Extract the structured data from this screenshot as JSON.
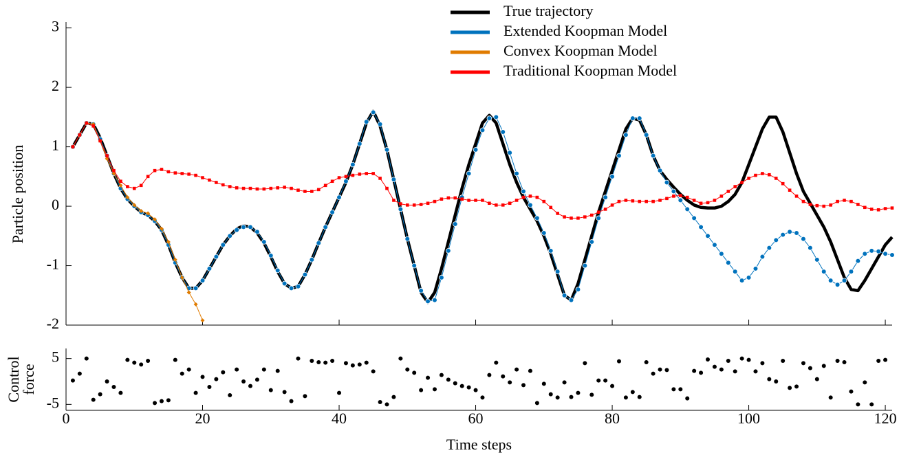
{
  "chart_data": [
    {
      "type": "line",
      "ylabel": "Particle position",
      "x": [
        1,
        2,
        3,
        4,
        5,
        6,
        7,
        8,
        9,
        10,
        11,
        12,
        13,
        14,
        15,
        16,
        17,
        18,
        19,
        20,
        21,
        22,
        23,
        24,
        25,
        26,
        27,
        28,
        29,
        30,
        31,
        32,
        33,
        34,
        35,
        36,
        37,
        38,
        39,
        40,
        41,
        42,
        43,
        44,
        45,
        46,
        47,
        48,
        49,
        50,
        51,
        52,
        53,
        54,
        55,
        56,
        57,
        58,
        59,
        60,
        61,
        62,
        63,
        64,
        65,
        66,
        67,
        68,
        69,
        70,
        71,
        72,
        73,
        74,
        75,
        76,
        77,
        78,
        79,
        80,
        81,
        82,
        83,
        84,
        85,
        86,
        87,
        88,
        89,
        90,
        91,
        92,
        93,
        94,
        95,
        96,
        97,
        98,
        99,
        100,
        101,
        102,
        103,
        104,
        105,
        106,
        107,
        108,
        109,
        110,
        111,
        112,
        113,
        114,
        115,
        116,
        117,
        118,
        119,
        120,
        121
      ],
      "xlim": [
        0,
        121
      ],
      "xticks": [
        0,
        20,
        40,
        60,
        80,
        100,
        120
      ],
      "ylim": [
        -2,
        3.1
      ],
      "yticks": [
        -2,
        -1,
        0,
        1,
        2,
        3
      ],
      "legend": "upper right",
      "series": [
        {
          "name": "True trajectory",
          "color": "#000000",
          "marker": "none",
          "values": [
            1.0,
            1.2,
            1.4,
            1.38,
            1.15,
            0.85,
            0.55,
            0.3,
            0.12,
            0.0,
            -0.1,
            -0.15,
            -0.25,
            -0.4,
            -0.65,
            -0.95,
            -1.2,
            -1.38,
            -1.38,
            -1.25,
            -1.05,
            -0.85,
            -0.65,
            -0.5,
            -0.38,
            -0.33,
            -0.35,
            -0.45,
            -0.62,
            -0.85,
            -1.1,
            -1.3,
            -1.38,
            -1.35,
            -1.15,
            -0.9,
            -0.62,
            -0.35,
            -0.1,
            0.15,
            0.4,
            0.7,
            1.05,
            1.4,
            1.6,
            1.35,
            0.95,
            0.45,
            -0.05,
            -0.55,
            -1.0,
            -1.45,
            -1.62,
            -1.45,
            -1.05,
            -0.6,
            -0.15,
            0.3,
            0.7,
            1.05,
            1.4,
            1.53,
            1.4,
            1.05,
            0.7,
            0.4,
            0.15,
            -0.05,
            -0.25,
            -0.5,
            -0.8,
            -1.15,
            -1.5,
            -1.58,
            -1.3,
            -0.9,
            -0.5,
            -0.1,
            0.25,
            0.6,
            0.95,
            1.3,
            1.48,
            1.45,
            1.2,
            0.85,
            0.6,
            0.45,
            0.32,
            0.2,
            0.1,
            0.02,
            -0.02,
            -0.03,
            -0.03,
            0.0,
            0.08,
            0.2,
            0.4,
            0.7,
            1.0,
            1.3,
            1.5,
            1.5,
            1.25,
            0.9,
            0.55,
            0.25,
            0.05,
            -0.15,
            -0.35,
            -0.6,
            -0.9,
            -1.2,
            -1.4,
            -1.42,
            -1.25,
            -1.05,
            -0.85,
            -0.65,
            -0.52
          ]
        },
        {
          "name": "Extended Koopman Model",
          "color": "#0072bd",
          "marker": "circle",
          "values": [
            1.0,
            1.2,
            1.4,
            1.38,
            1.13,
            0.85,
            0.55,
            0.3,
            0.12,
            0.0,
            -0.1,
            -0.15,
            -0.25,
            -0.4,
            -0.65,
            -0.95,
            -1.2,
            -1.38,
            -1.38,
            -1.25,
            -1.05,
            -0.85,
            -0.65,
            -0.5,
            -0.4,
            -0.35,
            -0.35,
            -0.43,
            -0.6,
            -0.83,
            -1.08,
            -1.3,
            -1.38,
            -1.35,
            -1.15,
            -0.9,
            -0.62,
            -0.35,
            -0.1,
            0.15,
            0.42,
            0.7,
            1.05,
            1.42,
            1.58,
            1.38,
            0.95,
            0.45,
            -0.05,
            -0.55,
            -1.0,
            -1.42,
            -1.6,
            -1.58,
            -1.2,
            -0.75,
            -0.3,
            0.15,
            0.55,
            0.95,
            1.28,
            1.48,
            1.5,
            1.25,
            0.9,
            0.55,
            0.25,
            0.02,
            -0.2,
            -0.45,
            -0.75,
            -1.1,
            -1.5,
            -1.58,
            -1.4,
            -1.0,
            -0.6,
            -0.2,
            0.15,
            0.5,
            0.85,
            1.2,
            1.48,
            1.48,
            1.2,
            0.85,
            0.6,
            0.4,
            0.25,
            0.1,
            -0.05,
            -0.2,
            -0.35,
            -0.5,
            -0.65,
            -0.8,
            -0.95,
            -1.1,
            -1.25,
            -1.2,
            -1.05,
            -0.85,
            -0.7,
            -0.57,
            -0.48,
            -0.43,
            -0.45,
            -0.55,
            -0.7,
            -0.9,
            -1.1,
            -1.25,
            -1.32,
            -1.25,
            -1.1,
            -0.92,
            -0.8,
            -0.75,
            -0.76,
            -0.8,
            -0.82
          ]
        },
        {
          "name": "Convex Koopman Model",
          "color": "#e07b00",
          "marker": "diamond",
          "values": [
            1.0,
            1.2,
            1.4,
            1.38,
            1.1,
            0.8,
            0.55,
            0.35,
            0.15,
            0.02,
            -0.08,
            -0.12,
            -0.22,
            -0.38,
            -0.6,
            -0.9,
            -1.2,
            -1.45,
            -1.65,
            -1.92,
            null,
            null,
            null,
            null,
            null,
            null,
            null,
            null,
            null,
            null,
            null,
            null,
            null,
            null,
            null,
            null,
            null,
            null,
            null,
            null,
            null,
            null,
            null,
            null,
            null,
            null,
            null,
            null,
            null,
            null,
            null,
            null,
            null,
            null,
            null,
            null,
            null,
            null,
            null,
            null,
            null,
            null,
            null,
            null,
            null,
            null,
            null,
            null,
            null,
            null,
            null,
            null,
            null,
            null,
            null,
            null,
            null,
            null,
            null,
            null,
            null,
            null,
            null,
            null,
            null,
            null,
            null,
            null,
            null,
            null,
            null,
            null,
            null,
            null,
            null,
            null,
            null,
            null,
            null,
            null,
            null,
            null,
            null,
            null,
            null,
            null,
            null,
            null,
            null,
            null,
            null,
            null,
            null,
            null,
            null,
            null,
            null,
            null,
            null,
            null,
            null
          ]
        },
        {
          "name": "Traditional Koopman Model",
          "color": "#ff0000",
          "marker": "square",
          "values": [
            1.0,
            1.2,
            1.4,
            1.35,
            1.1,
            0.85,
            0.6,
            0.42,
            0.33,
            0.3,
            0.35,
            0.5,
            0.6,
            0.62,
            0.58,
            0.56,
            0.55,
            0.54,
            0.52,
            0.48,
            0.44,
            0.4,
            0.36,
            0.33,
            0.31,
            0.3,
            0.3,
            0.29,
            0.29,
            0.3,
            0.31,
            0.32,
            0.3,
            0.27,
            0.25,
            0.25,
            0.28,
            0.35,
            0.42,
            0.48,
            0.5,
            0.52,
            0.54,
            0.55,
            0.55,
            0.47,
            0.3,
            0.1,
            0.04,
            0.02,
            0.02,
            0.03,
            0.05,
            0.08,
            0.12,
            0.14,
            0.14,
            0.12,
            0.1,
            0.1,
            0.1,
            0.05,
            0.02,
            0.02,
            0.05,
            0.1,
            0.15,
            0.17,
            0.15,
            0.08,
            -0.02,
            -0.12,
            -0.18,
            -0.2,
            -0.2,
            -0.18,
            -0.15,
            -0.1,
            -0.05,
            0.02,
            0.08,
            0.1,
            0.09,
            0.08,
            0.08,
            0.08,
            0.1,
            0.13,
            0.17,
            0.18,
            0.15,
            0.1,
            0.05,
            0.06,
            0.1,
            0.17,
            0.25,
            0.33,
            0.4,
            0.47,
            0.52,
            0.55,
            0.53,
            0.47,
            0.38,
            0.27,
            0.17,
            0.08,
            0.03,
            0.01,
            0.0,
            0.02,
            0.08,
            0.1,
            0.08,
            0.03,
            -0.02,
            -0.05,
            -0.06,
            -0.04,
            -0.03
          ]
        }
      ]
    },
    {
      "type": "scatter",
      "ylabel": [
        "Control",
        "force"
      ],
      "xlabel": "Time steps",
      "x": [
        1,
        2,
        3,
        4,
        5,
        6,
        7,
        8,
        9,
        10,
        11,
        12,
        13,
        14,
        15,
        16,
        17,
        18,
        19,
        20,
        21,
        22,
        23,
        24,
        25,
        26,
        27,
        28,
        29,
        30,
        31,
        32,
        33,
        34,
        35,
        36,
        37,
        38,
        39,
        40,
        41,
        42,
        43,
        44,
        45,
        46,
        47,
        48,
        49,
        50,
        51,
        52,
        53,
        54,
        55,
        56,
        57,
        58,
        59,
        60,
        61,
        62,
        63,
        64,
        65,
        66,
        67,
        68,
        69,
        70,
        71,
        72,
        73,
        74,
        75,
        76,
        77,
        78,
        79,
        80,
        81,
        82,
        83,
        84,
        85,
        86,
        87,
        88,
        89,
        90,
        91,
        92,
        93,
        94,
        95,
        96,
        97,
        98,
        99,
        100,
        101,
        102,
        103,
        104,
        105,
        106,
        107,
        108,
        109,
        110,
        111,
        112,
        113,
        114,
        115,
        116,
        117,
        118,
        119,
        120
      ],
      "values": [
        0.2,
        1.7,
        5,
        -4,
        -2.8,
        0,
        -1.2,
        -2.5,
        4.7,
        4.1,
        3.7,
        4.5,
        -4.7,
        -4.3,
        -4.1,
        4.7,
        1.7,
        2.6,
        -2.5,
        1,
        -1.2,
        0.5,
        2,
        -3,
        2.6,
        0,
        -1,
        0.4,
        2.6,
        -1.9,
        2.3,
        -2.3,
        -4.3,
        5,
        -3.2,
        4.5,
        4.2,
        4.1,
        4.5,
        -2.5,
        4,
        3.5,
        3.7,
        4.1,
        2.2,
        -4.5,
        -5,
        -3.4,
        5,
        2.6,
        1.9,
        -1.9,
        0.8,
        -1.7,
        1.4,
        0.4,
        -0.4,
        -1,
        -1.3,
        -1.9,
        -3.5,
        1.4,
        4.1,
        1.1,
        -0.2,
        2.6,
        -0.8,
        2.3,
        -4.7,
        -0.5,
        -2.8,
        -3.5,
        -0.2,
        -3.4,
        -2.5,
        4,
        -2.9,
        0.2,
        0.2,
        -1,
        4.4,
        -3.5,
        -2.3,
        -3.4,
        4.2,
        1.7,
        2.6,
        2.5,
        -1.7,
        -1.7,
        -3.7,
        2.3,
        1.9,
        4.8,
        3.2,
        2.6,
        4.5,
        2.2,
        5,
        4.7,
        2.2,
        4,
        0.5,
        0,
        4.5,
        -1.4,
        -1.1,
        4,
        2.9,
        0.5,
        3.4,
        -3.5,
        4.5,
        4.2,
        -2.2,
        -5,
        -0.2,
        -5,
        4.5,
        4.7
      ],
      "color": "#000000",
      "xlim": [
        0,
        121
      ],
      "xticks": [
        0,
        20,
        40,
        60,
        80,
        100,
        120
      ],
      "ylim": [
        -6.3,
        7.2
      ],
      "yticks": [
        -5,
        5
      ]
    }
  ]
}
